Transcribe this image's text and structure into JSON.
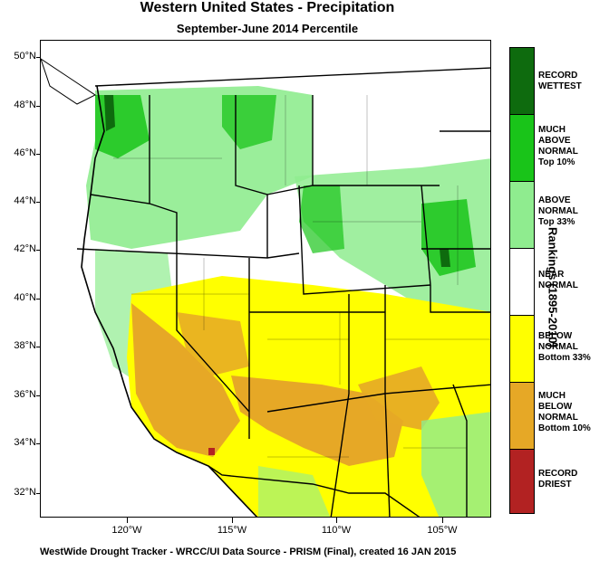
{
  "title": "Western United States - Precipitation",
  "subtitle": "September-June 2014 Percentile",
  "footer": "WestWide Drought Tracker - WRCC/UI  Data Source - PRISM (Final), created 16 JAN 2015",
  "colors": {
    "record_wettest": "#0e6b0e",
    "much_above": "#19c419",
    "above": "#8fec8f",
    "near": "#ffffff",
    "below": "#ffff00",
    "much_below": "#e6a826",
    "record_driest": "#b22222"
  },
  "legend": {
    "title": "Rankings (1895-2010)",
    "items": [
      {
        "label": "RECORD WETTEST",
        "color": "#0e6b0e"
      },
      {
        "label": "MUCH ABOVE NORMAL Top 10%",
        "color": "#19c419"
      },
      {
        "label": "ABOVE NORMAL Top 33%",
        "color": "#8fec8f"
      },
      {
        "label": "NEAR NORMAL",
        "color": "#ffffff"
      },
      {
        "label": "BELOW NORMAL Bottom 33%",
        "color": "#ffff00"
      },
      {
        "label": "MUCH BELOW NORMAL Bottom 10%",
        "color": "#e6a826"
      },
      {
        "label": "RECORD DRIEST",
        "color": "#b22222"
      }
    ]
  },
  "axes": {
    "lat_labels": [
      "50°N",
      "48°N",
      "46°N",
      "44°N",
      "42°N",
      "40°N",
      "38°N",
      "36°N",
      "34°N",
      "32°N"
    ],
    "lon_labels": [
      "120°W",
      "115°W",
      "110°W",
      "105°W"
    ]
  }
}
